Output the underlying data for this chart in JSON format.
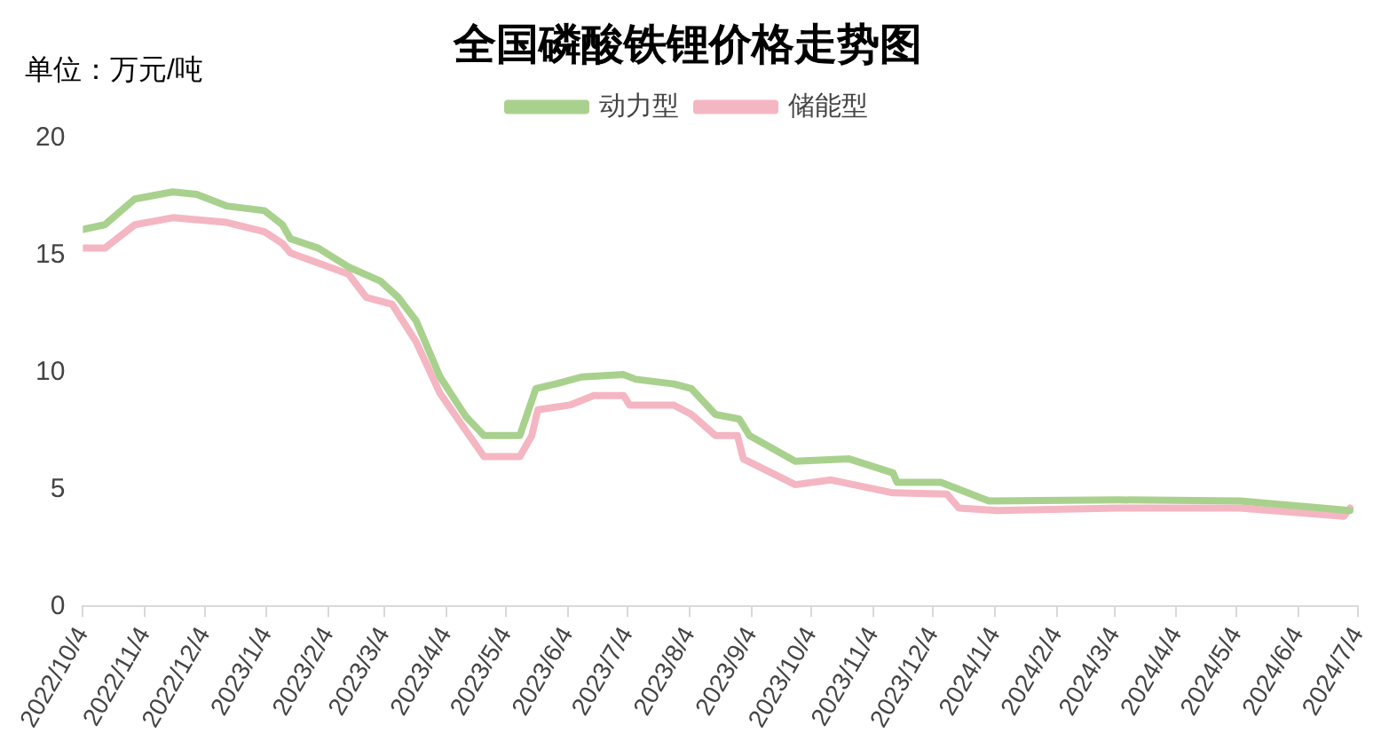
{
  "chart_data": {
    "type": "line",
    "title": "全国磷酸铁锂价格走势图",
    "ylabel": "单位：万元/吨",
    "legend": "top",
    "marker": "none",
    "grid": false,
    "xlim": [
      "2022-10-04",
      "2024-07-04"
    ],
    "xticks": [
      {
        "value": "2022-10-04",
        "label": "2022/10/4"
      },
      {
        "value": "2022-11-04",
        "label": "2022/11/4"
      },
      {
        "value": "2022-12-04",
        "label": "2022/12/4"
      },
      {
        "value": "2023-01-04",
        "label": "2023/1/4"
      },
      {
        "value": "2023-02-04",
        "label": "2023/2/4"
      },
      {
        "value": "2023-03-04",
        "label": "2023/3/4"
      },
      {
        "value": "2023-04-04",
        "label": "2023/4/4"
      },
      {
        "value": "2023-05-04",
        "label": "2023/5/4"
      },
      {
        "value": "2023-06-04",
        "label": "2023/6/4"
      },
      {
        "value": "2023-07-04",
        "label": "2023/7/4"
      },
      {
        "value": "2023-08-04",
        "label": "2023/8/4"
      },
      {
        "value": "2023-09-04",
        "label": "2023/9/4"
      },
      {
        "value": "2023-10-04",
        "label": "2023/10/4"
      },
      {
        "value": "2023-11-04",
        "label": "2023/11/4"
      },
      {
        "value": "2023-12-04",
        "label": "2023/12/4"
      },
      {
        "value": "2024-01-04",
        "label": "2024/1/4"
      },
      {
        "value": "2024-02-04",
        "label": "2024/2/4"
      },
      {
        "value": "2024-03-04",
        "label": "2024/3/4"
      },
      {
        "value": "2024-04-04",
        "label": "2024/4/4"
      },
      {
        "value": "2024-05-04",
        "label": "2024/5/4"
      },
      {
        "value": "2024-06-04",
        "label": "2024/6/4"
      },
      {
        "value": "2024-07-04",
        "label": "2024/7/4"
      }
    ],
    "ylim": [
      0,
      20
    ],
    "yticks": [
      0,
      5,
      10,
      15,
      20
    ],
    "series": [
      {
        "name": "动力型",
        "color": "#a9d18e",
        "x": [
          "2022-10-04",
          "2022-10-15",
          "2022-10-30",
          "2022-11-18",
          "2022-11-30",
          "2022-12-15",
          "2023-01-03",
          "2023-01-12",
          "2023-01-16",
          "2023-01-30",
          "2023-02-14",
          "2023-03-02",
          "2023-03-11",
          "2023-03-20",
          "2023-04-01",
          "2023-04-14",
          "2023-04-23",
          "2023-05-11",
          "2023-05-19",
          "2023-05-29",
          "2023-06-11",
          "2023-07-02",
          "2023-07-08",
          "2023-07-27",
          "2023-08-05",
          "2023-08-17",
          "2023-08-29",
          "2023-09-03",
          "2023-09-26",
          "2023-10-23",
          "2023-11-14",
          "2023-11-16",
          "2023-12-08",
          "2024-01-01",
          "2024-03-06",
          "2024-05-06",
          "2024-06-30"
        ],
        "values": [
          16.1,
          16.3,
          17.4,
          17.7,
          17.6,
          17.1,
          16.9,
          16.3,
          15.7,
          15.3,
          14.5,
          13.9,
          13.2,
          12.2,
          9.8,
          8.1,
          7.3,
          7.3,
          9.3,
          9.5,
          9.8,
          9.9,
          9.7,
          9.5,
          9.3,
          8.2,
          8.0,
          7.3,
          6.2,
          6.3,
          5.7,
          5.3,
          5.3,
          4.5,
          4.55,
          4.5,
          4.1
        ]
      },
      {
        "name": "储能型",
        "color": "#f4b6c2",
        "x": [
          "2022-10-04",
          "2022-10-15",
          "2022-10-30",
          "2022-11-18",
          "2022-12-15",
          "2023-01-03",
          "2023-01-12",
          "2023-01-16",
          "2023-02-14",
          "2023-02-23",
          "2023-03-08",
          "2023-03-20",
          "2023-04-01",
          "2023-04-14",
          "2023-04-23",
          "2023-05-11",
          "2023-05-17",
          "2023-05-20",
          "2023-06-05",
          "2023-06-17",
          "2023-07-02",
          "2023-07-05",
          "2023-07-27",
          "2023-08-05",
          "2023-08-17",
          "2023-08-28",
          "2023-08-31",
          "2023-09-26",
          "2023-10-14",
          "2023-11-14",
          "2023-12-11",
          "2023-12-17",
          "2024-01-05",
          "2024-03-06",
          "2024-05-06",
          "2024-06-27",
          "2024-06-30"
        ],
        "values": [
          15.3,
          15.3,
          16.3,
          16.6,
          16.4,
          16.0,
          15.5,
          15.1,
          14.2,
          13.2,
          12.9,
          11.3,
          9.1,
          7.5,
          6.4,
          6.4,
          7.3,
          8.4,
          8.6,
          9.0,
          9.0,
          8.6,
          8.6,
          8.2,
          7.3,
          7.3,
          6.3,
          5.2,
          5.4,
          4.85,
          4.8,
          4.2,
          4.1,
          4.2,
          4.2,
          3.85,
          4.2
        ]
      }
    ]
  }
}
